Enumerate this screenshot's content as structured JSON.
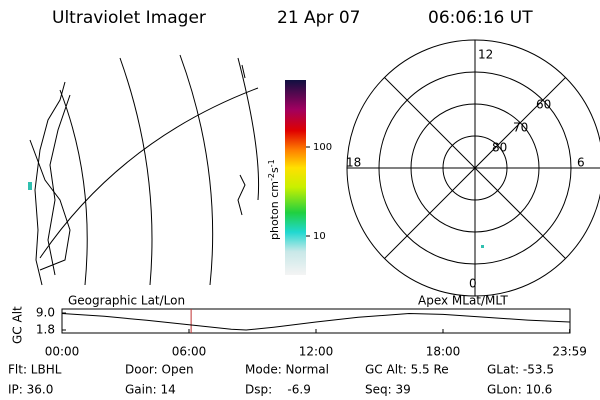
{
  "header": {
    "instrument": "Ultraviolet Imager",
    "date": "21 Apr 07",
    "time": "06:06:16 UT"
  },
  "colorbar": {
    "unit_base": "photon cm",
    "unit_exp1": "-2",
    "unit_s": "s",
    "unit_exp2": "-1",
    "ticks": [
      "100",
      "10"
    ]
  },
  "polar": {
    "mlt_labels": [
      "12",
      "18",
      "6",
      "0"
    ],
    "lat_labels": [
      "60",
      "70",
      "80"
    ]
  },
  "strip": {
    "left_label": "Geographic Lat/Lon",
    "right_label": "Apex MLat/MLT",
    "axis_label": "GC Alt",
    "yticks": [
      {
        "value": 9.0,
        "label": "9.0"
      },
      {
        "value": 1.8,
        "label": "1.8"
      }
    ],
    "xticks": [
      {
        "value": 0,
        "label": "00:00"
      },
      {
        "value": 6,
        "label": "06:00"
      },
      {
        "value": 12,
        "label": "12:00"
      },
      {
        "value": 18,
        "label": "18:00"
      },
      {
        "value": 23.983,
        "label": "23:59"
      }
    ],
    "xlim": [
      0,
      24
    ],
    "ylim": [
      9.0,
      1.8
    ],
    "x": [
      0,
      2,
      4,
      6,
      8,
      8.7,
      10,
      12,
      14,
      16.4,
      18,
      20,
      22,
      23.98
    ],
    "values": [
      8.8,
      7.6,
      5.9,
      4.0,
      2.1,
      1.8,
      3.0,
      5.2,
      7.2,
      8.8,
      8.4,
      7.2,
      6.0,
      5.2
    ],
    "current_time": 6.1
  },
  "info": [
    [
      "Flt: LBHL",
      "Door: Open",
      "Mode: Normal",
      "GC Alt: 5.5 Re",
      "GLat: -53.5"
    ],
    [
      "IP: 36.0",
      "Gain: 14",
      "Dsp:    -6.9",
      "Seq: 39",
      "GLon: 10.6"
    ]
  ]
}
